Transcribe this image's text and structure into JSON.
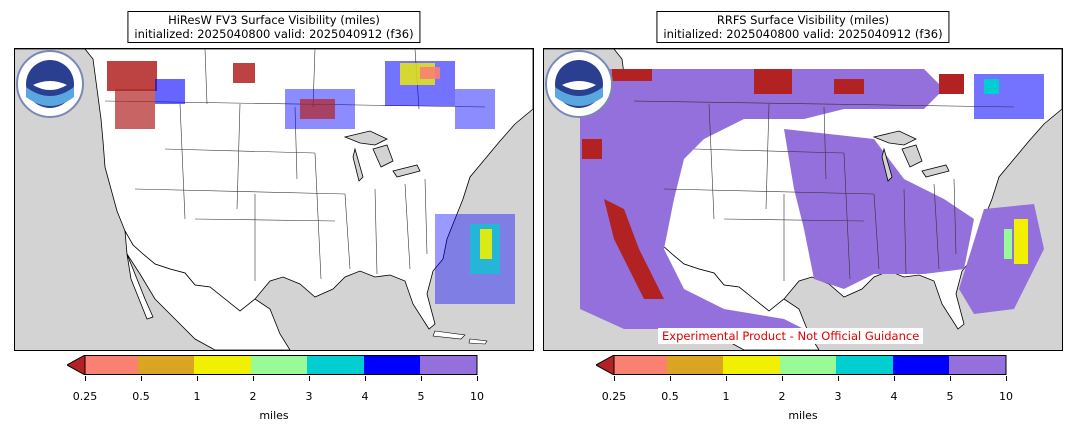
{
  "panels": [
    {
      "title_line1": "HiResW FV3 Surface Visibility (miles)",
      "title_line2": "initialized: 2025040800 valid: 2025040912 (f36)",
      "disclaimer": "",
      "colorbar_label": "miles",
      "logo_text": "NOAA"
    },
    {
      "title_line1": "RRFS Surface Visibility (miles)",
      "title_line2": "initialized: 2025040800 valid: 2025040912 (f36)",
      "disclaimer": "Experimental Product - Not Official Guidance",
      "colorbar_label": "miles",
      "logo_text": "NOAA"
    }
  ],
  "colorbar": {
    "ticks": [
      "0.25",
      "0.5",
      "1",
      "2",
      "3",
      "4",
      "5",
      "10"
    ],
    "colors": [
      "#b22222",
      "#fa8072",
      "#daa520",
      "#f0f000",
      "#98fb98",
      "#00ced1",
      "#0000ff",
      "#9370db"
    ],
    "extend": "min"
  },
  "map_style": {
    "land": "#ffffff",
    "ocean": "#d3d3d3",
    "border": "#000000"
  }
}
